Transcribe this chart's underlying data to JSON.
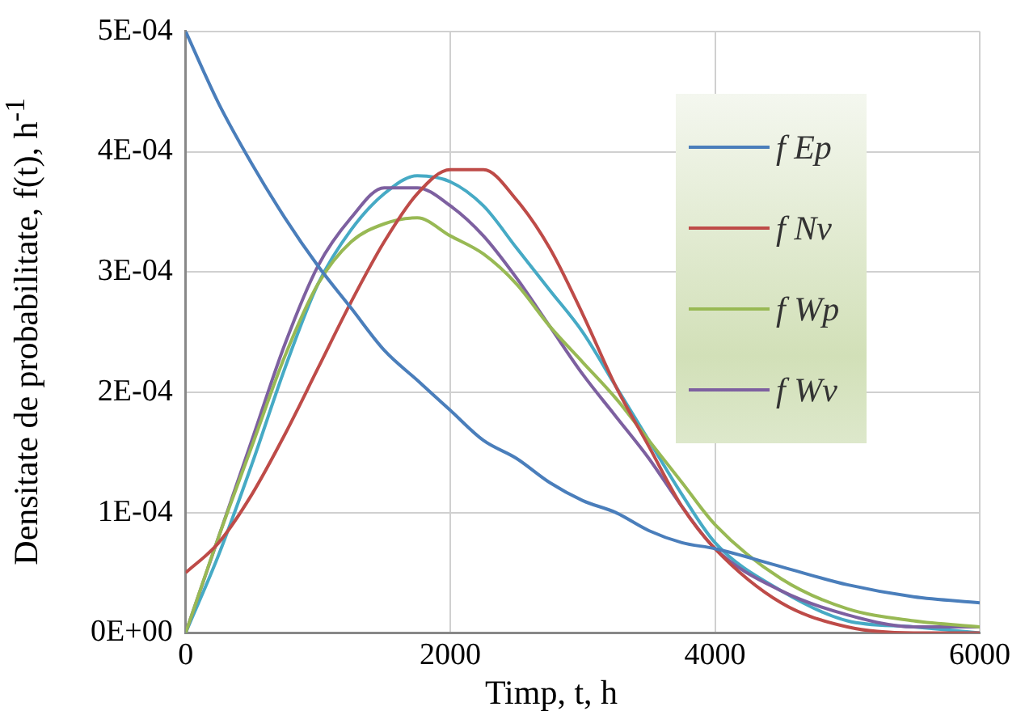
{
  "chart_data": {
    "type": "line",
    "xlabel": "Timp, t, h",
    "ylabel": "Densitate de probabilitate, f(t), h$^{-1}$",
    "x": [
      0,
      250,
      500,
      750,
      1000,
      1250,
      1500,
      1750,
      2000,
      2250,
      2500,
      2750,
      3000,
      3250,
      3500,
      3750,
      4000,
      4500,
      5000,
      5500,
      6000
    ],
    "series": [
      {
        "name": "f Ep",
        "color": "#4a7ebb",
        "values": [
          0.0005,
          0.00044,
          0.00039,
          0.000345,
          0.000305,
          0.00027,
          0.000235,
          0.00021,
          0.000185,
          0.00016,
          0.000145,
          0.000125,
          0.00011,
          0.0001,
          8.5e-05,
          7.5e-05,
          7e-05,
          5.5e-05,
          4e-05,
          3e-05,
          2.5e-05
        ]
      },
      {
        "name": "f Nv",
        "color": "#be4b48",
        "values": [
          5e-05,
          7.5e-05,
          0.000115,
          0.000165,
          0.00022,
          0.000275,
          0.000325,
          0.000365,
          0.000385,
          0.000385,
          0.00036,
          0.00032,
          0.000265,
          0.000205,
          0.000155,
          0.000105,
          7e-05,
          2.5e-05,
          5e-06,
          0.0,
          0.0
        ]
      },
      {
        "name": "f Wp",
        "color": "#98b954",
        "values": [
          0.0,
          8e-05,
          0.000155,
          0.00023,
          0.00029,
          0.000325,
          0.00034,
          0.000345,
          0.00033,
          0.000315,
          0.00029,
          0.000255,
          0.000225,
          0.000195,
          0.00016,
          0.000125,
          9e-05,
          4.5e-05,
          2e-05,
          1e-05,
          5e-06
        ]
      },
      {
        "name": "f Wv",
        "color": "#7d60a0",
        "values": [
          0.0,
          8e-05,
          0.00016,
          0.00024,
          0.000305,
          0.000345,
          0.00037,
          0.00037,
          0.000355,
          0.00033,
          0.000295,
          0.000255,
          0.000215,
          0.00018,
          0.000145,
          0.000105,
          7e-05,
          3.5e-05,
          1.5e-05,
          5e-06,
          5e-06
        ]
      },
      {
        "color": "#46aac5",
        "values": [
          0.0,
          6.5e-05,
          0.00014,
          0.00022,
          0.00029,
          0.000335,
          0.000365,
          0.00038,
          0.000375,
          0.000355,
          0.00032,
          0.000285,
          0.00025,
          0.000205,
          0.00016,
          0.000115,
          7.5e-05,
          3.5e-05,
          1e-05,
          5e-06,
          0.0
        ]
      }
    ],
    "xlim": [
      0,
      6000
    ],
    "xticks": [
      0,
      2000,
      4000,
      6000
    ],
    "ylim": [
      0,
      0.0005
    ],
    "yticks": [
      {
        "value": 0,
        "label": "0E+00"
      },
      {
        "value": 0.0001,
        "label": "1E-04"
      },
      {
        "value": 0.0002,
        "label": "2E-04"
      },
      {
        "value": 0.0003,
        "label": "3E-04"
      },
      {
        "value": 0.0004,
        "label": "4E-04"
      },
      {
        "value": 0.0005,
        "label": "5E-04"
      }
    ],
    "grid": true,
    "legend": "top right",
    "marker": "none",
    "line_style": "solid"
  }
}
